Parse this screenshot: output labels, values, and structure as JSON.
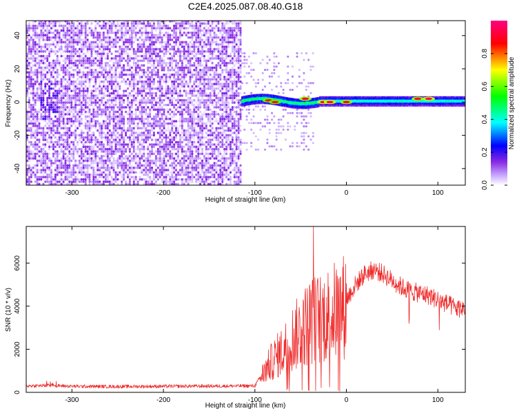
{
  "title": "C2E4.2025.087.08.40.G18",
  "chart_data": [
    {
      "type": "heatmap",
      "xlabel": "Height of straight line (km)",
      "ylabel": "Frequency (Hz)",
      "xlim": [
        -350,
        130
      ],
      "ylim": [
        -50,
        49
      ],
      "xticks": [
        -300,
        -200,
        -100,
        0,
        100
      ],
      "yticks": [
        -40,
        -20,
        0,
        20,
        40
      ],
      "grid": false,
      "colorbar": {
        "label": "Normalized spectral amplitude",
        "range": [
          0,
          1
        ],
        "ticks": [
          "0.0",
          "0.2",
          "0.4",
          "0.6",
          "0.8"
        ],
        "colormap": [
          "#ffffff",
          "#c8a8ff",
          "#8a2be2",
          "#0000ff",
          "#00ffff",
          "#00ff00",
          "#ffff00",
          "#ff0000",
          "#ff0080"
        ]
      },
      "noise_region": {
        "x": [
          -350,
          -115
        ],
        "freq": [
          -50,
          49
        ],
        "amplitude": 0.15
      },
      "signal_band": {
        "x": [
          -115,
          130
        ],
        "center_freq": 0.5,
        "half_width_freq": 3
      },
      "peaks": [
        {
          "x": -85,
          "freq": 1,
          "amplitude": 0.85
        },
        {
          "x": -78,
          "freq": 0,
          "amplitude": 0.85
        },
        {
          "x": -45,
          "freq": 2,
          "amplitude": 0.9
        },
        {
          "x": -25,
          "freq": 0,
          "amplitude": 0.95
        },
        {
          "x": -18,
          "freq": 0,
          "amplitude": 0.95
        },
        {
          "x": 0,
          "freq": 0,
          "amplitude": 0.9
        },
        {
          "x": 78,
          "freq": 2,
          "amplitude": 0.9
        },
        {
          "x": 90,
          "freq": 2,
          "amplitude": 0.95
        }
      ]
    },
    {
      "type": "line",
      "xlabel": "Height of straight line (km)",
      "ylabel": "SNR (10 * v/v)",
      "xlim": [
        -350,
        130
      ],
      "ylim": [
        0,
        7700
      ],
      "xticks": [
        -300,
        -200,
        -100,
        0,
        100
      ],
      "yticks": [
        0,
        2000,
        4000,
        6000
      ],
      "grid": false,
      "color": "#ee2a2a",
      "series": [
        {
          "x": [
            -350,
            -320,
            -300,
            -250,
            -200,
            -150,
            -100,
            -90,
            -80,
            -70,
            -60,
            -50,
            -40,
            -30,
            -20,
            -10,
            0,
            10,
            20,
            30,
            40,
            50,
            60,
            70,
            80,
            90,
            100,
            110,
            120,
            130
          ],
          "values": [
            300,
            320,
            280,
            270,
            280,
            290,
            300,
            1000,
            1600,
            2000,
            2600,
            3000,
            3500,
            3600,
            3800,
            4000,
            4300,
            5000,
            5500,
            5700,
            5500,
            5200,
            4900,
            4700,
            4600,
            4500,
            4300,
            4100,
            3900,
            3900
          ]
        }
      ],
      "max_spike": {
        "x": -36,
        "value": 7700
      }
    }
  ]
}
